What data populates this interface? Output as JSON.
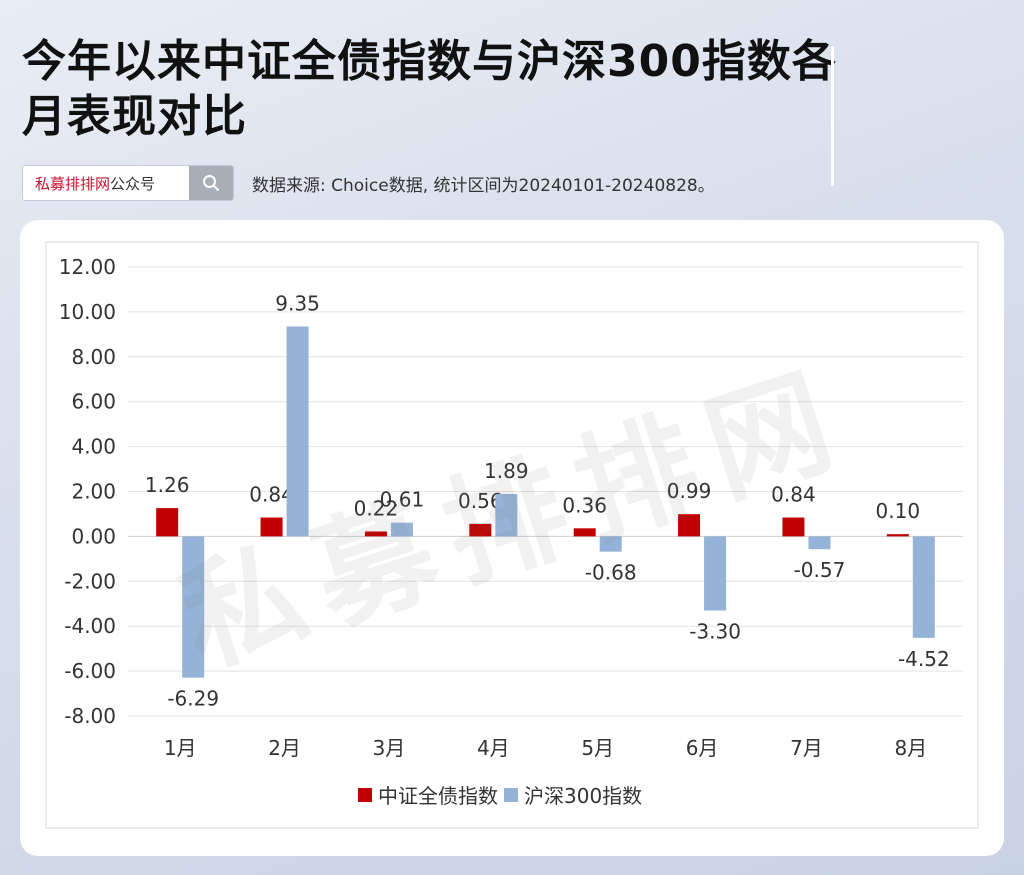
{
  "header": {
    "title": "今年以来中证全债指数与沪深300指数各月表现对比",
    "search_brand": "私募排排网",
    "search_suffix": "公众号",
    "source_note": "数据来源: Choice数据, 统计区间为20240101-20240828。"
  },
  "watermark": "私募排排网",
  "chart_data": {
    "type": "bar",
    "title": "",
    "xlabel": "",
    "ylabel": "",
    "categories": [
      "1月",
      "2月",
      "3月",
      "4月",
      "5月",
      "6月",
      "7月",
      "8月"
    ],
    "series": [
      {
        "name": "中证全债指数",
        "color": "#c00000",
        "values": [
          1.26,
          0.84,
          0.22,
          0.56,
          0.36,
          0.99,
          0.84,
          0.1
        ]
      },
      {
        "name": "沪深300指数",
        "color": "#95b3d7",
        "values": [
          -6.29,
          9.35,
          0.61,
          1.89,
          -0.68,
          -3.3,
          -0.57,
          -4.52
        ]
      }
    ],
    "value_labels": {
      "series0": [
        "1.26",
        "0.84",
        "0.22",
        "0.56",
        "0.36",
        "0.99",
        "0.84",
        "0.10"
      ],
      "series1": [
        "-6.29",
        "9.35",
        "0.61",
        "1.89",
        "-0.68",
        "-3.30",
        "-0.57",
        "-4.52"
      ]
    },
    "ylim": [
      -8,
      12
    ],
    "yticks": [
      "12.00",
      "10.00",
      "8.00",
      "6.00",
      "4.00",
      "2.00",
      "0.00",
      "-2.00",
      "-4.00",
      "-6.00",
      "-8.00"
    ],
    "grid": true,
    "legend": "bottom"
  }
}
